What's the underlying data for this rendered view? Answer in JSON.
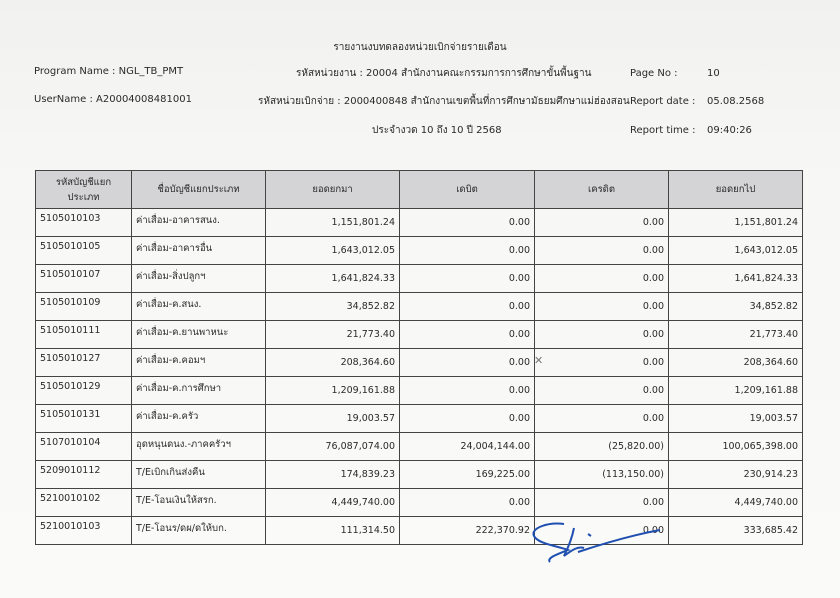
{
  "report": {
    "title": "รายงานงบทดลองหน่วยเบิกจ่ายรายเดือน",
    "program_name": "Program Name : NGL_TB_PMT",
    "user_name": "UserName : A20004008481001",
    "agency": "รหัสหน่วยงาน : 20004 สำนักงานคณะกรรมการการศึกษาขั้นพื้นฐาน",
    "disbursing_unit": "รหัสหน่วยเบิกจ่าย : 2000400848 สำนักงานเขตพื้นที่การศึกษามัธยมศึกษาแม่ฮ่องสอน",
    "period": "ประจำงวด 10 ถึง 10 ปี 2568",
    "page_no_label": "Page No :",
    "page_no": "10",
    "report_date_label": "Report date :",
    "report_date": "05.08.2568",
    "report_time_label": "Report time :",
    "report_time": "09:40:26"
  },
  "table": {
    "headers": [
      "รหัสบัญชีแยกประเภท",
      "ชื่อบัญชีแยกประเภท",
      "ยอดยกมา",
      "เดบิต",
      "เครดิต",
      "ยอดยกไป"
    ],
    "rows": [
      [
        "5105010103",
        "ค่าเสื่อม-อาคารสนง.",
        "1,151,801.24",
        "0.00",
        "0.00",
        "1,151,801.24"
      ],
      [
        "5105010105",
        "ค่าเสื่อม-อาคารอื่น",
        "1,643,012.05",
        "0.00",
        "0.00",
        "1,643,012.05"
      ],
      [
        "5105010107",
        "ค่าเสื่อม-สิ่งปลูกฯ",
        "1,641,824.33",
        "0.00",
        "0.00",
        "1,641,824.33"
      ],
      [
        "5105010109",
        "ค่าเสื่อม-ค.สนง.",
        "34,852.82",
        "0.00",
        "0.00",
        "34,852.82"
      ],
      [
        "5105010111",
        "ค่าเสื่อม-ค.ยานพาหนะ",
        "21,773.40",
        "0.00",
        "0.00",
        "21,773.40"
      ],
      [
        "5105010127",
        "ค่าเสื่อม-ค.คอมฯ",
        "208,364.60",
        "0.00",
        "0.00",
        "208,364.60"
      ],
      [
        "5105010129",
        "ค่าเสื่อม-ค.การศึกษา",
        "1,209,161.88",
        "0.00",
        "0.00",
        "1,209,161.88"
      ],
      [
        "5105010131",
        "ค่าเสื่อม-ค.ครัว",
        "19,003.57",
        "0.00",
        "0.00",
        "19,003.57"
      ],
      [
        "5107010104",
        "อุดหนุนดนง.-ภาคครัวฯ",
        "76,087,074.00",
        "24,004,144.00",
        "(25,820.00)",
        "100,065,398.00"
      ],
      [
        "5209010112",
        "T/Eเบิกเกินส่งคืน",
        "174,839.23",
        "169,225.00",
        "(113,150.00)",
        "230,914.23"
      ],
      [
        "5210010102",
        "T/E-โอนเงินให้สรก.",
        "4,449,740.00",
        "0.00",
        "0.00",
        "4,449,740.00"
      ],
      [
        "5210010103",
        "T/E-โอนร/ดผ/ดให้บก.",
        "111,314.50",
        "222,370.92",
        "0.00",
        "333,685.42"
      ]
    ]
  },
  "annotations": {
    "check_mark": "✕",
    "signature_color": "#1f4fb0"
  }
}
